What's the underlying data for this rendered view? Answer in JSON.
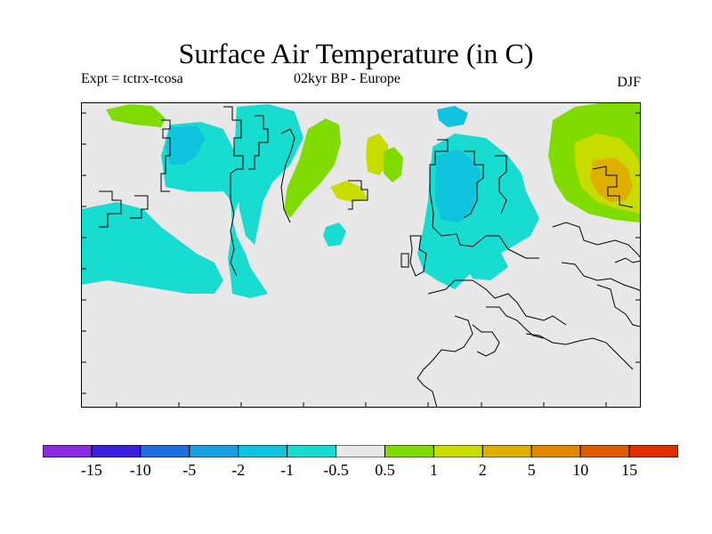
{
  "header": {
    "title": "Surface Air Temperature (in C)",
    "expt_label": "Expt = tctrx-tcosa",
    "period_label": "02kyr BP - Europe",
    "season_label": "DJF"
  },
  "legend": {
    "colors": [
      "#8a2be2",
      "#3a1fdc",
      "#1f6fe0",
      "#1aa0e0",
      "#10c4e0",
      "#18dcd0",
      "#e8e8e8",
      "#80dc00",
      "#c8dc00",
      "#e0b000",
      "#e08800",
      "#e05a00",
      "#e03000"
    ],
    "ticks": [
      "-15",
      "-10",
      "-5",
      "-2",
      "-1",
      "-0.5",
      "0.5",
      "1",
      "2",
      "5",
      "10",
      "15"
    ]
  },
  "map": {
    "background_color": "#e8e8e8",
    "regions": [
      {
        "name": "west-atlantic-cyan",
        "category": "-1 to -0.5",
        "color": "#18dcd0"
      },
      {
        "name": "greenland-cyan",
        "category": "-1 to -0.5",
        "color": "#18dcd0"
      },
      {
        "name": "iceland-green",
        "category": "0.5 to 1",
        "color": "#80dc00"
      },
      {
        "name": "scandinavia-cyan",
        "category": "-1 to -0.5",
        "color": "#18dcd0"
      },
      {
        "name": "scandinavia-blue",
        "category": "-2 to -1",
        "color": "#10c4e0"
      },
      {
        "name": "russia-green",
        "category": "0.5 to 1",
        "color": "#80dc00"
      },
      {
        "name": "russia-yellow",
        "category": "1 to 2",
        "color": "#c8dc00"
      },
      {
        "name": "russia-orange",
        "category": "2 to 5",
        "color": "#e0b000"
      }
    ]
  }
}
